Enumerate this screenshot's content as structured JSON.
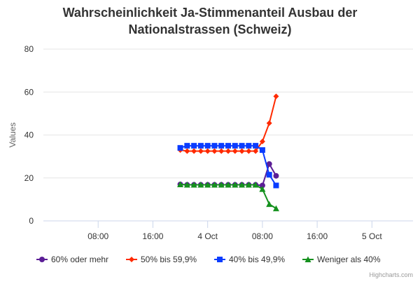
{
  "chart_data": {
    "type": "line",
    "title": "Wahrscheinlichkeit Ja-Stimmenanteil Ausbau der Nationalstrassen (Schweiz)",
    "title_lines": [
      "Wahrscheinlichkeit Ja-Stimmenanteil Ausbau der",
      "Nationalstrassen (Schweiz)"
    ],
    "xlabel": "",
    "ylabel": "Values",
    "ylim": [
      0,
      80
    ],
    "yticks": [
      0,
      20,
      40,
      60,
      80
    ],
    "xlim_hours": [
      0,
      54
    ],
    "xticks": [
      {
        "hour": 8,
        "label": "08:00"
      },
      {
        "hour": 16,
        "label": "16:00"
      },
      {
        "hour": 24,
        "label": "4 Oct"
      },
      {
        "hour": 32,
        "label": "08:00"
      },
      {
        "hour": 40,
        "label": "16:00"
      },
      {
        "hour": 48,
        "label": "5 Oct"
      }
    ],
    "x_hours": [
      20,
      21,
      22,
      23,
      24,
      25,
      26,
      27,
      28,
      29,
      30,
      31,
      32,
      33,
      34
    ],
    "grid": true,
    "legend_position": "bottom",
    "series": [
      {
        "name": "60% oder mehr",
        "color": "#5b1e96",
        "marker": "circle",
        "values": [
          17,
          16.8,
          16.8,
          16.8,
          16.8,
          16.8,
          16.8,
          16.8,
          16.8,
          16.8,
          16.8,
          16.8,
          16.5,
          26.5,
          21
        ]
      },
      {
        "name": "50% bis 59,9%",
        "color": "#ff2a00",
        "marker": "diamond",
        "values": [
          33,
          32.5,
          32.5,
          32.5,
          32.5,
          32.5,
          32.5,
          32.5,
          32.5,
          32.5,
          32.5,
          32.5,
          37,
          45.5,
          58
        ]
      },
      {
        "name": "40% bis 49,9%",
        "color": "#0a3cff",
        "marker": "square",
        "values": [
          34,
          35,
          35,
          35,
          35,
          35,
          35,
          35,
          35,
          35,
          35,
          35,
          33,
          21.5,
          16.5
        ]
      },
      {
        "name": "Weniger als 40%",
        "color": "#15911e",
        "marker": "triangle",
        "values": [
          17,
          16.8,
          16.8,
          16.8,
          16.8,
          16.8,
          16.8,
          16.8,
          16.8,
          16.8,
          16.8,
          16.8,
          14.8,
          7.8,
          5.8
        ]
      }
    ]
  },
  "credits": "Highcharts.com"
}
